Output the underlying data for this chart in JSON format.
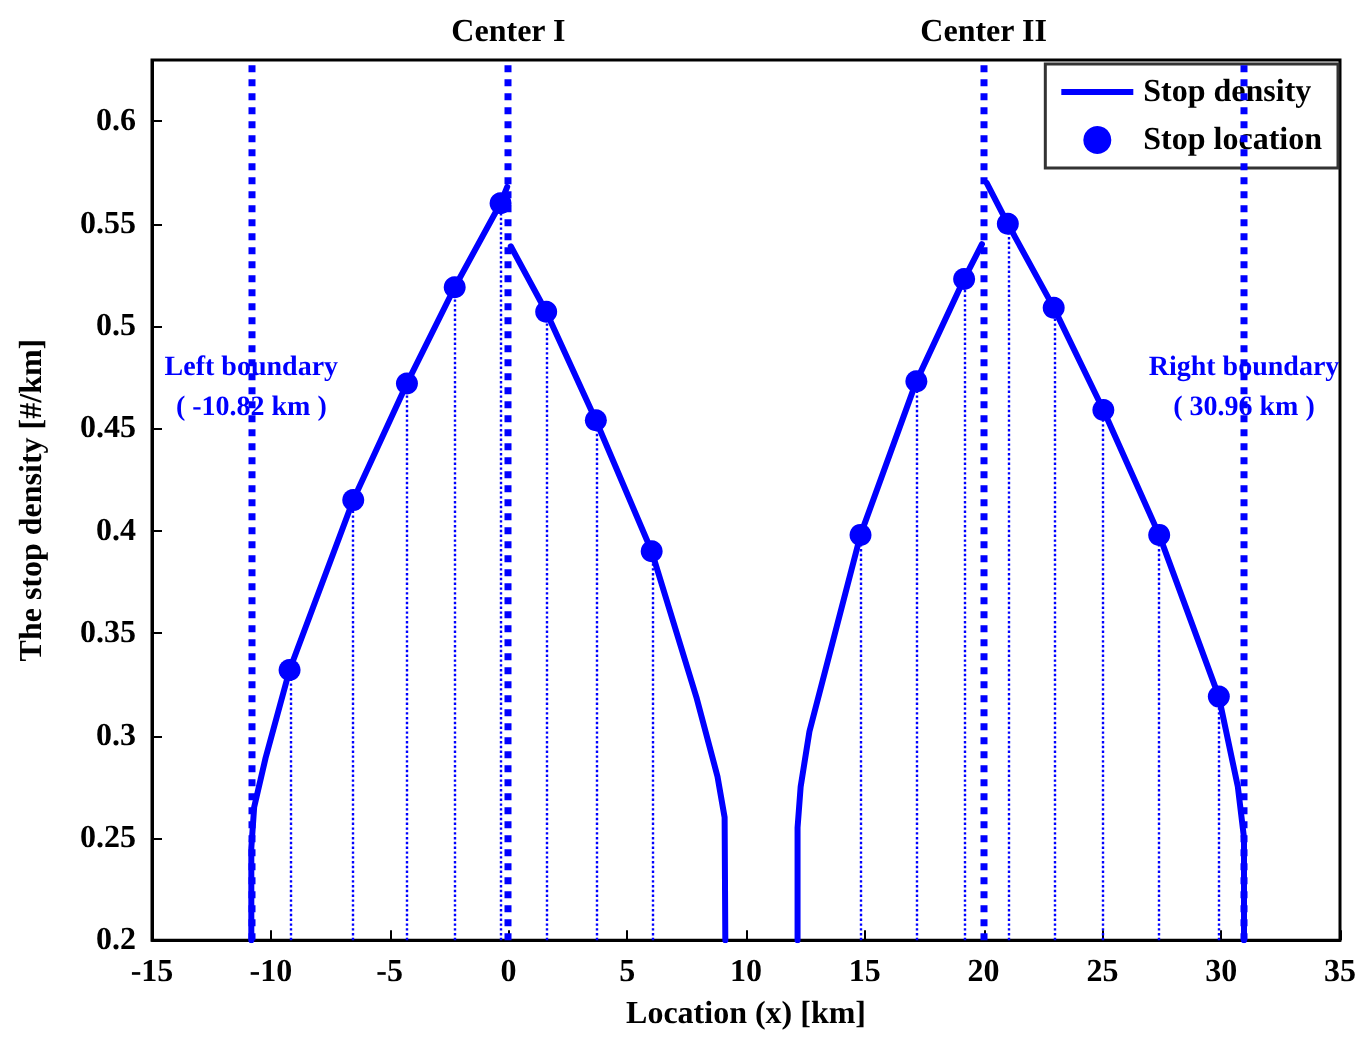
{
  "chart_data": {
    "type": "line",
    "xlabel": "Location (x) [km]",
    "ylabel": "The stop density [#/km]",
    "xlim": [
      -15,
      35
    ],
    "xticks": [
      -15,
      -10,
      -5,
      0,
      5,
      10,
      15,
      20,
      25,
      30,
      35
    ],
    "ylim": [
      0.2,
      0.63
    ],
    "yticks": [
      0.2,
      0.25,
      0.3,
      0.35,
      0.4,
      0.45,
      0.5,
      0.55,
      0.6
    ],
    "grid": false,
    "legend": "top right",
    "series": [
      {
        "name": "Stop density",
        "color": "#0000ff",
        "marker": "none",
        "line_style": "solid",
        "x": [
          -10.82,
          -10.82,
          -10.7,
          -10.22,
          -9.21,
          -6.53,
          -4.27,
          -2.26,
          -0.33,
          -0.05,
          null,
          0.1,
          1.59,
          3.68,
          6.03,
          7.93,
          8.8,
          9.1,
          9.13,
          null,
          12.17,
          12.17,
          12.3,
          12.67,
          14.82,
          17.17,
          19.18,
          19.93,
          null,
          20.13,
          21.02,
          22.95,
          25.04,
          27.39,
          29.9,
          30.7,
          30.96,
          30.96
        ],
        "values": [
          0.2,
          0.245,
          0.265,
          0.289,
          0.332,
          0.415,
          0.472,
          0.519,
          0.56,
          0.568,
          null,
          0.539,
          0.507,
          0.454,
          0.39,
          0.318,
          0.28,
          0.26,
          0.2,
          null,
          0.2,
          0.255,
          0.275,
          0.302,
          0.398,
          0.473,
          0.523,
          0.54,
          null,
          0.57,
          0.55,
          0.509,
          0.459,
          0.398,
          0.319,
          0.275,
          0.25,
          0.2
        ]
      },
      {
        "name": "Stop location",
        "type": "scatter",
        "color": "#0000ff",
        "marker": "circle",
        "x": [
          -9.21,
          -6.53,
          -4.27,
          -2.26,
          -0.33,
          1.59,
          3.68,
          6.03,
          14.82,
          17.17,
          19.18,
          21.02,
          22.95,
          25.04,
          27.39,
          29.9
        ],
        "values": [
          0.332,
          0.415,
          0.472,
          0.519,
          0.56,
          0.507,
          0.454,
          0.39,
          0.398,
          0.473,
          0.523,
          0.55,
          0.509,
          0.459,
          0.398,
          0.319
        ],
        "errors": [
          [
            0.2,
            0.332
          ],
          [
            0.2,
            0.415
          ],
          [
            0.2,
            0.472
          ],
          [
            0.2,
            0.519
          ],
          [
            0.2,
            0.56
          ],
          [
            0.2,
            0.507
          ],
          [
            0.2,
            0.454
          ],
          [
            0.2,
            0.39
          ],
          [
            0.2,
            0.398
          ],
          [
            0.2,
            0.473
          ],
          [
            0.2,
            0.523
          ],
          [
            0.2,
            0.55
          ],
          [
            0.2,
            0.509
          ],
          [
            0.2,
            0.459
          ],
          [
            0.2,
            0.398
          ],
          [
            0.2,
            0.319
          ]
        ]
      }
    ],
    "ref_lines": [
      {
        "axis": "x",
        "value": -10.82,
        "color": "#0000ff",
        "line_style": "dotted"
      },
      {
        "axis": "x",
        "value": 0,
        "label": "Center I",
        "color": "#0000ff",
        "line_style": "dotted"
      },
      {
        "axis": "x",
        "value": 20,
        "label": "Center II",
        "color": "#0000ff",
        "line_style": "dotted"
      },
      {
        "axis": "x",
        "value": 30.96,
        "color": "#0000ff",
        "line_style": "dotted"
      }
    ],
    "annotations": [
      {
        "text": "Left boundary\n( -10.82 km )",
        "x": -10.82,
        "y": 0.47
      },
      {
        "text": "Right boundary\n( 30.96 km )",
        "x": 30.96,
        "y": 0.47
      }
    ]
  }
}
